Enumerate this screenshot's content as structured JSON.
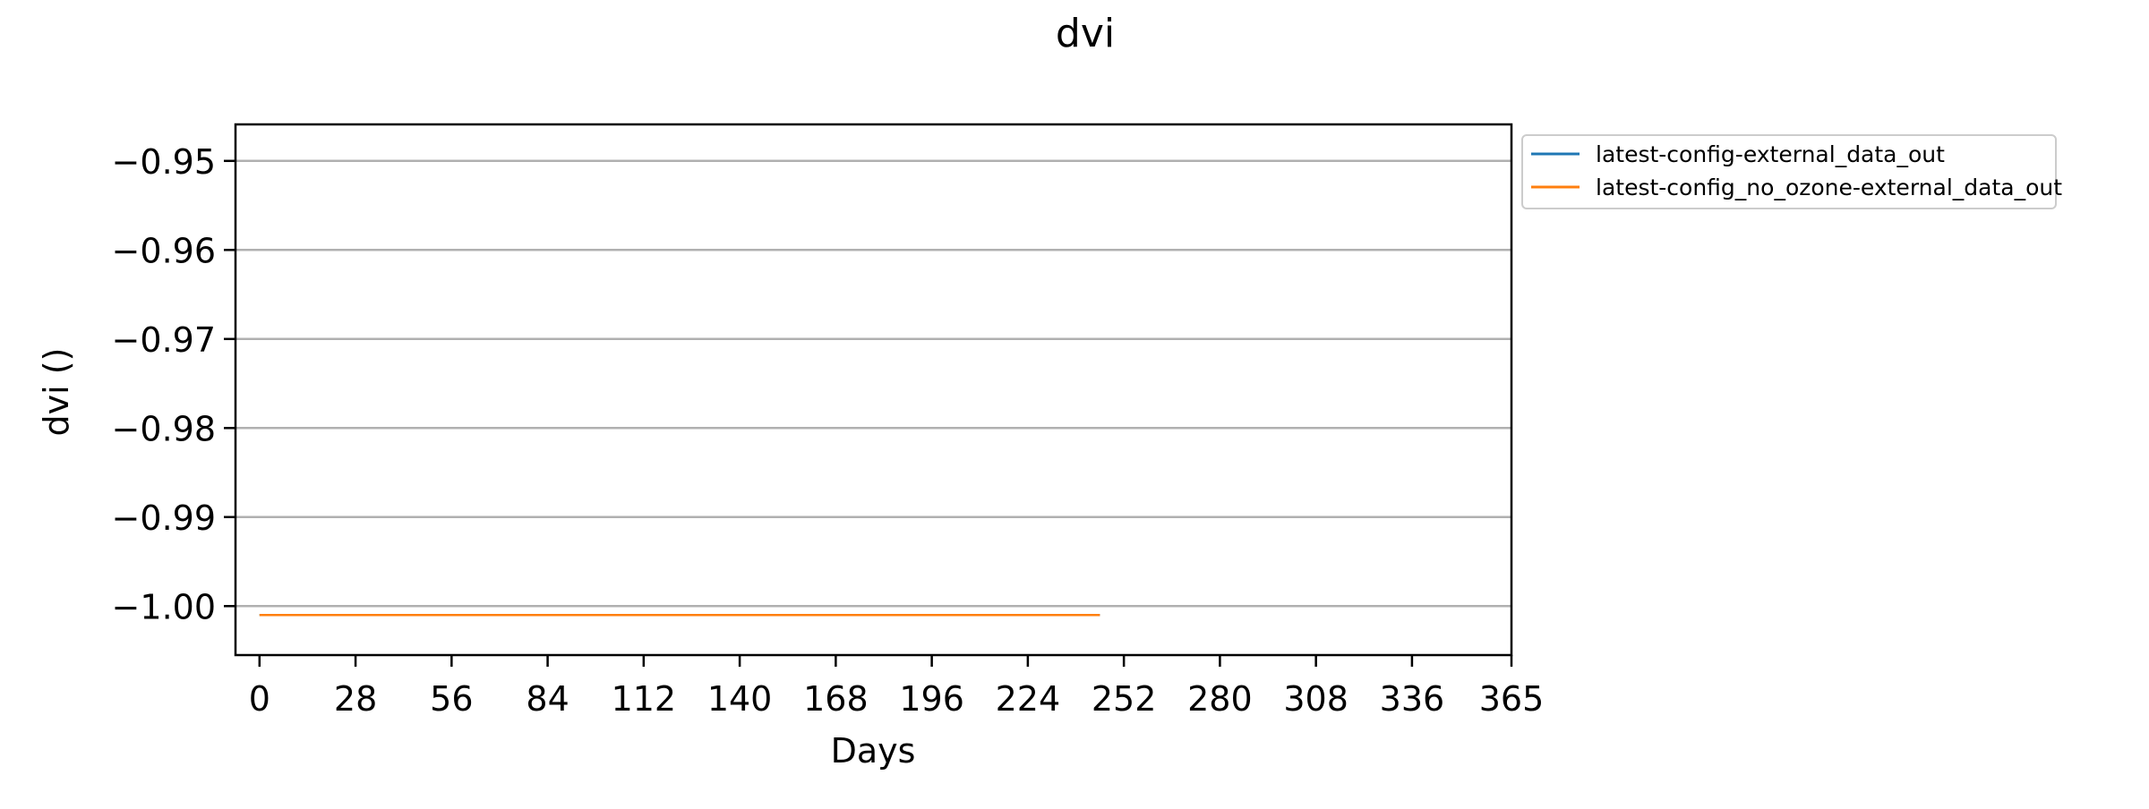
{
  "chart_data": {
    "type": "line",
    "title": "dvi",
    "xlabel": "Days",
    "ylabel": "dvi ()",
    "xlim": [
      -7,
      365
    ],
    "ylim": [
      -1.0055,
      -0.9459
    ],
    "xticks": [
      0,
      28,
      56,
      84,
      112,
      140,
      168,
      196,
      224,
      252,
      280,
      308,
      336,
      365
    ],
    "xtick_labels": [
      "0",
      "28",
      "56",
      "84",
      "112",
      "140",
      "168",
      "196",
      "224",
      "252",
      "280",
      "308",
      "336",
      "365"
    ],
    "yticks": [
      -0.95,
      -0.96,
      -0.97,
      -0.98,
      -0.99,
      -1.0
    ],
    "ytick_labels": [
      "−0.95",
      "−0.96",
      "−0.97",
      "−0.98",
      "−0.99",
      "−1.00"
    ],
    "grid": "horizontal",
    "legend_position": "outside-top-right",
    "series": [
      {
        "name": "latest-config-external_data_out",
        "color": "#1f77b4",
        "x": [
          0,
          245
        ],
        "y": [
          -1.001,
          -1.001
        ]
      },
      {
        "name": "latest-config_no_ozone-external_data_out",
        "color": "#ff7f0e",
        "x": [
          0,
          245
        ],
        "y": [
          -1.001,
          -1.001
        ]
      }
    ]
  }
}
